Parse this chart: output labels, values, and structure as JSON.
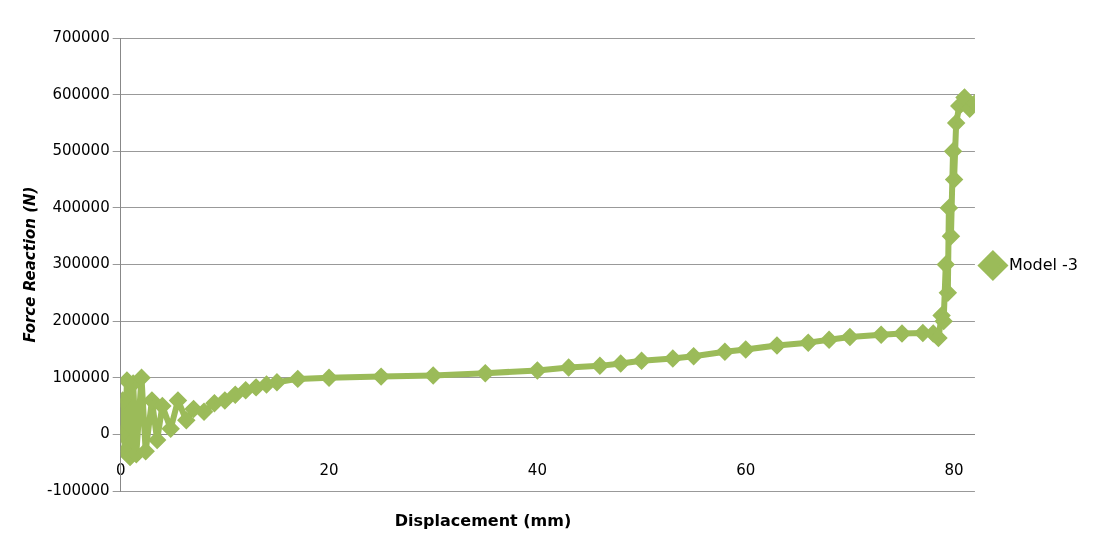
{
  "chart_data": {
    "type": "line",
    "xlabel": "Displacement (mm)",
    "ylabel": "Force Reaction (N)",
    "xlim": [
      0,
      82
    ],
    "xticks": [
      0,
      20,
      40,
      60,
      80
    ],
    "ylim": [
      -100000,
      700000
    ],
    "yticks": [
      -100000,
      0,
      100000,
      200000,
      300000,
      400000,
      500000,
      600000,
      700000
    ],
    "grid": "y",
    "legend": "right",
    "marker": "diamond",
    "line_style": "solid",
    "series": [
      {
        "name": "Model -3",
        "color": "#9bbb59",
        "x": [
          0,
          0.2,
          0.4,
          0.6,
          0.9,
          1.2,
          1.5,
          2,
          2.4,
          3,
          3.5,
          4,
          4.8,
          5.5,
          6.3,
          7,
          8,
          9,
          10,
          11,
          12,
          13,
          14,
          15,
          17,
          20,
          25,
          30,
          35,
          40,
          43,
          46,
          48,
          50,
          53,
          55,
          58,
          60,
          63,
          66,
          68,
          70,
          73,
          75,
          77,
          78,
          78.5,
          78.8,
          79,
          79.2,
          79.4,
          79.5,
          79.7,
          79.9,
          80,
          80.2,
          80.5,
          81,
          81.5,
          82
        ],
        "values": [
          0,
          60000,
          -30000,
          95000,
          -40000,
          90000,
          -35000,
          100000,
          -30000,
          60000,
          -10000,
          50000,
          10000,
          60000,
          25000,
          45000,
          40000,
          55000,
          60000,
          70000,
          78000,
          83000,
          88000,
          92000,
          98000,
          100000,
          102000,
          104000,
          108000,
          113000,
          118000,
          121000,
          125000,
          130000,
          134000,
          138000,
          146000,
          150000,
          157000,
          162000,
          167000,
          172000,
          176000,
          178000,
          179000,
          178000,
          170000,
          210000,
          200000,
          300000,
          250000,
          400000,
          350000,
          500000,
          450000,
          550000,
          580000,
          595000,
          575000,
          585000
        ]
      }
    ]
  }
}
